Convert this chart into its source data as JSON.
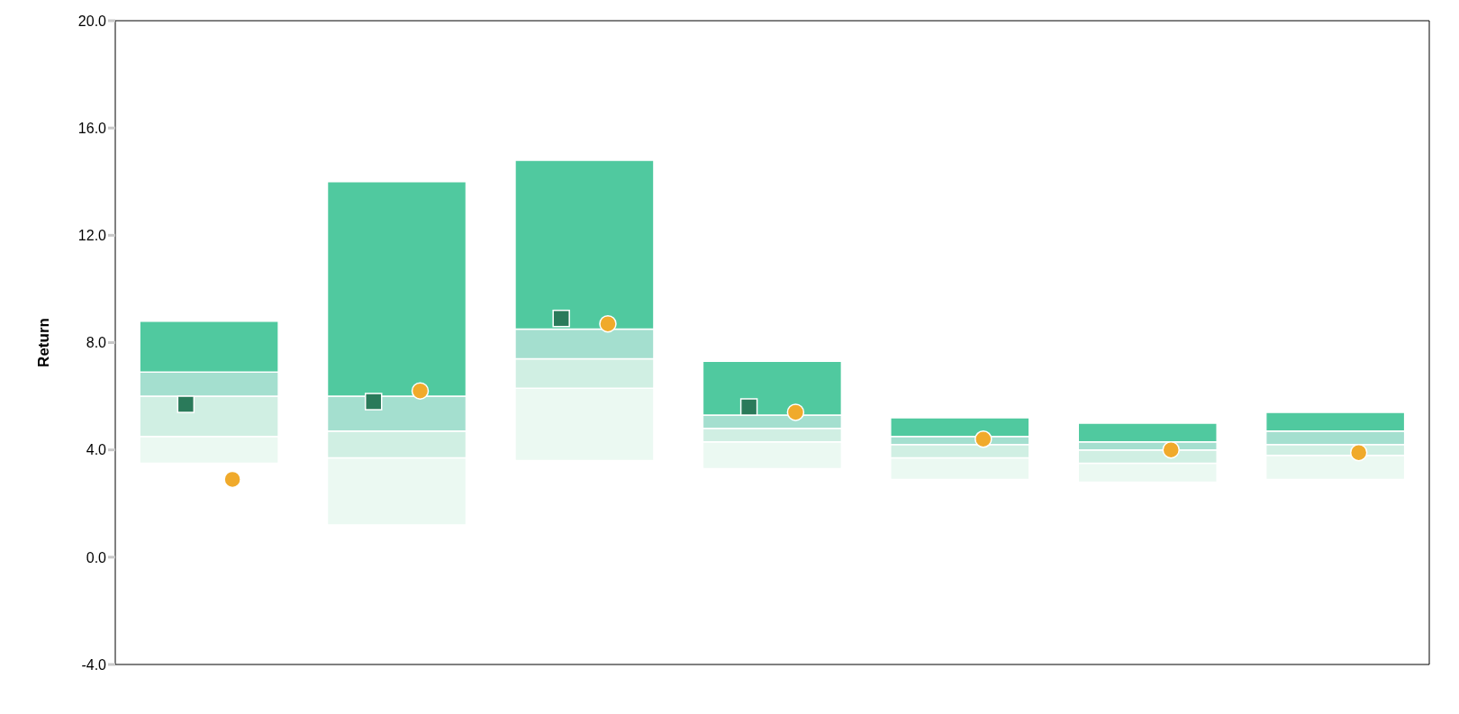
{
  "chart_data": {
    "type": "bar",
    "ylabel": "Return",
    "categories": [
      null,
      null,
      null,
      null,
      null,
      null,
      null
    ],
    "series": [
      {
        "color": "#ebf9f2",
        "base": [
          3.5,
          1.2,
          3.6,
          3.3,
          2.9,
          2.8,
          2.9
        ],
        "values": [
          1.0,
          2.5,
          2.7,
          1.0,
          0.8,
          0.7,
          0.9
        ]
      },
      {
        "color": "#d0efe3",
        "base": [
          4.5,
          3.7,
          6.3,
          4.3,
          3.7,
          3.5,
          3.8
        ],
        "values": [
          1.5,
          1.0,
          1.1,
          0.5,
          0.5,
          0.5,
          0.4
        ]
      },
      {
        "color": "#a4dfcf",
        "base": [
          6.0,
          4.7,
          7.4,
          4.8,
          4.2,
          4.0,
          4.2
        ],
        "values": [
          0.9,
          1.3,
          1.1,
          0.5,
          0.3,
          0.3,
          0.5
        ]
      },
      {
        "color": "#50c99f",
        "base": [
          6.9,
          6.0,
          8.5,
          5.3,
          4.5,
          4.3,
          4.7
        ],
        "values": [
          1.9,
          8.0,
          6.3,
          2.0,
          0.7,
          0.7,
          0.7
        ]
      },
      {
        "type": "scatter",
        "marker": "square",
        "color": "#2a7a5a",
        "values": [
          5.7,
          5.8,
          8.9,
          5.6,
          null,
          null,
          null
        ]
      },
      {
        "type": "scatter",
        "marker": "circle",
        "color": "#f0aa2b",
        "values": [
          2.9,
          6.2,
          8.7,
          5.4,
          4.4,
          4.0,
          3.9
        ]
      }
    ],
    "ylim": [
      -4,
      20
    ],
    "yticks": [
      {
        "value": -4,
        "label": "-4.0"
      },
      {
        "value": 0,
        "label": "0.0"
      },
      {
        "value": 4,
        "label": "4.0"
      },
      {
        "value": 8,
        "label": "8.0"
      },
      {
        "value": 12,
        "label": "12.0"
      },
      {
        "value": 16,
        "label": "16.0"
      },
      {
        "value": 20,
        "label": "20.0"
      }
    ],
    "grid": false
  }
}
